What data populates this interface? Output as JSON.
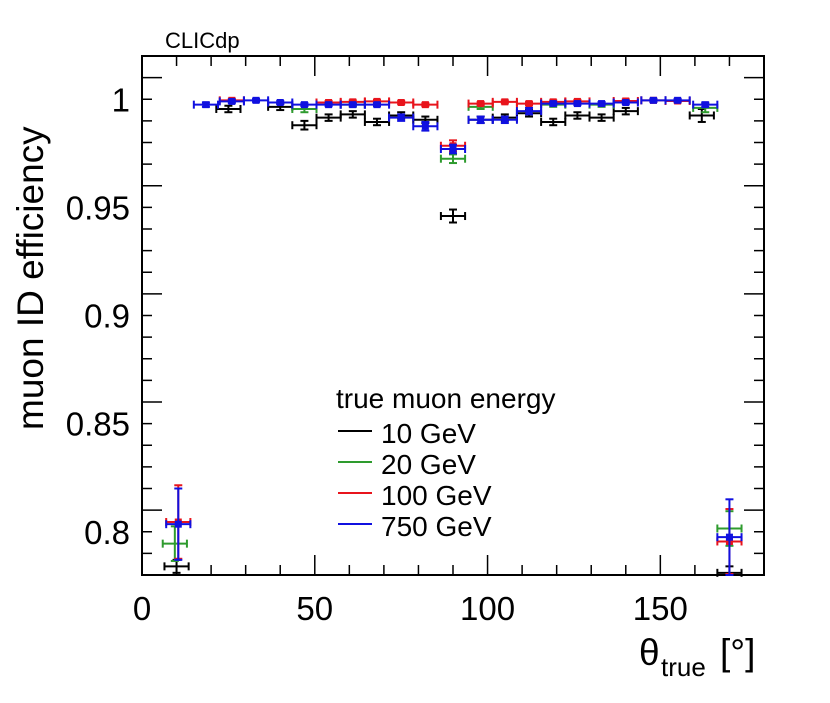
{
  "chart_data": {
    "type": "scatter",
    "label": "CLICdp",
    "xlabel_main": "θ",
    "xlabel_sub": "true",
    "xlabel_unit": "[°]",
    "ylabel": "muon ID efficiency",
    "xlim": [
      0,
      180
    ],
    "ylim": [
      0.78,
      1.02
    ],
    "x_ticks": [
      0,
      50,
      100,
      150
    ],
    "x_tick_labels": [
      "0",
      "50",
      "100",
      "150"
    ],
    "y_ticks": [
      0.8,
      0.85,
      0.9,
      0.95,
      1.0
    ],
    "y_tick_labels": [
      "0.8",
      "0.85",
      "0.9",
      "0.95",
      "1"
    ],
    "legend_title": "true muon energy",
    "legend_placement": "lower-center",
    "series": [
      {
        "name": "10 GeV",
        "color": "#000000",
        "marker": "none",
        "points": [
          {
            "x": 10,
            "xerr": 3.5,
            "y": 0.784,
            "yerr": 0.003
          },
          {
            "x": 25,
            "xerr": 3.5,
            "y": 0.9955,
            "yerr": 0.0015
          },
          {
            "x": 40,
            "xerr": 3.5,
            "y": 0.9965,
            "yerr": 0.0015
          },
          {
            "x": 47,
            "xerr": 3.5,
            "y": 0.988,
            "yerr": 0.002
          },
          {
            "x": 54,
            "xerr": 3.5,
            "y": 0.9915,
            "yerr": 0.0015
          },
          {
            "x": 61,
            "xerr": 3.5,
            "y": 0.993,
            "yerr": 0.0015
          },
          {
            "x": 68,
            "xerr": 3.5,
            "y": 0.9895,
            "yerr": 0.0015
          },
          {
            "x": 75,
            "xerr": 3.5,
            "y": 0.9925,
            "yerr": 0.0015
          },
          {
            "x": 82,
            "xerr": 3.5,
            "y": 0.9905,
            "yerr": 0.0015
          },
          {
            "x": 90,
            "xerr": 3.5,
            "y": 0.946,
            "yerr": 0.003
          },
          {
            "x": 98,
            "xerr": 3.5,
            "y": 0.9905,
            "yerr": 0.0015
          },
          {
            "x": 105,
            "xerr": 3.5,
            "y": 0.9915,
            "yerr": 0.0015
          },
          {
            "x": 112,
            "xerr": 3.5,
            "y": 0.9935,
            "yerr": 0.0015
          },
          {
            "x": 119,
            "xerr": 3.5,
            "y": 0.9895,
            "yerr": 0.0015
          },
          {
            "x": 126,
            "xerr": 3.5,
            "y": 0.9925,
            "yerr": 0.0015
          },
          {
            "x": 133,
            "xerr": 3.5,
            "y": 0.9915,
            "yerr": 0.0015
          },
          {
            "x": 140,
            "xerr": 3.5,
            "y": 0.9945,
            "yerr": 0.0015
          },
          {
            "x": 162,
            "xerr": 3.5,
            "y": 0.9925,
            "yerr": 0.003
          },
          {
            "x": 170,
            "xerr": 3.5,
            "y": 0.781,
            "yerr": 0.003
          }
        ]
      },
      {
        "name": "20 GeV",
        "color": "#2e9b2e",
        "marker": "none",
        "points": [
          {
            "x": 9.5,
            "xerr": 3.5,
            "y": 0.7945,
            "yerr": 0.008
          },
          {
            "x": 47,
            "xerr": 3.5,
            "y": 0.9955,
            "yerr": 0.0015
          },
          {
            "x": 61,
            "xerr": 3.5,
            "y": 0.9975,
            "yerr": 0.001
          },
          {
            "x": 90,
            "xerr": 3.5,
            "y": 0.9725,
            "yerr": 0.002
          },
          {
            "x": 98,
            "xerr": 3.5,
            "y": 0.9965,
            "yerr": 0.001
          },
          {
            "x": 119,
            "xerr": 3.5,
            "y": 0.9975,
            "yerr": 0.001
          },
          {
            "x": 133,
            "xerr": 3.5,
            "y": 0.9975,
            "yerr": 0.001
          },
          {
            "x": 163,
            "xerr": 3.5,
            "y": 0.996,
            "yerr": 0.002
          },
          {
            "x": 170,
            "xerr": 3.5,
            "y": 0.8015,
            "yerr": 0.008
          }
        ]
      },
      {
        "name": "100 GeV",
        "color": "#e8141c",
        "marker": "square",
        "points": [
          {
            "x": 10.5,
            "xerr": 3.5,
            "y": 0.8045,
            "yerr": 0.017
          },
          {
            "x": 26,
            "xerr": 3.5,
            "y": 0.9995,
            "yerr": 0.0007
          },
          {
            "x": 54,
            "xerr": 3.5,
            "y": 0.9985,
            "yerr": 0.0007
          },
          {
            "x": 61,
            "xerr": 3.5,
            "y": 0.9988,
            "yerr": 0.0007
          },
          {
            "x": 68,
            "xerr": 3.5,
            "y": 0.999,
            "yerr": 0.0007
          },
          {
            "x": 75,
            "xerr": 3.5,
            "y": 0.9985,
            "yerr": 0.0007
          },
          {
            "x": 82,
            "xerr": 3.5,
            "y": 0.9975,
            "yerr": 0.0007
          },
          {
            "x": 90,
            "xerr": 3.5,
            "y": 0.9785,
            "yerr": 0.0025
          },
          {
            "x": 98,
            "xerr": 3.5,
            "y": 0.998,
            "yerr": 0.0007
          },
          {
            "x": 105,
            "xerr": 3.5,
            "y": 0.9988,
            "yerr": 0.0007
          },
          {
            "x": 112,
            "xerr": 3.5,
            "y": 0.998,
            "yerr": 0.0007
          },
          {
            "x": 119,
            "xerr": 3.5,
            "y": 0.9988,
            "yerr": 0.0007
          },
          {
            "x": 126,
            "xerr": 3.5,
            "y": 0.999,
            "yerr": 0.0007
          },
          {
            "x": 140,
            "xerr": 3.5,
            "y": 0.9992,
            "yerr": 0.0007
          },
          {
            "x": 148,
            "xerr": 3.5,
            "y": 0.9995,
            "yerr": 0.0007
          },
          {
            "x": 155,
            "xerr": 3.5,
            "y": 0.9992,
            "yerr": 0.0007
          },
          {
            "x": 170,
            "xerr": 3.5,
            "y": 0.7955,
            "yerr": 0.015
          }
        ]
      },
      {
        "name": "750 GeV",
        "color": "#1010e0",
        "marker": "square",
        "points": [
          {
            "x": 10.5,
            "xerr": 3.5,
            "y": 0.8035,
            "yerr": 0.0165
          },
          {
            "x": 18.5,
            "xerr": 3.5,
            "y": 0.9975,
            "yerr": 0.001
          },
          {
            "x": 26,
            "xerr": 3.5,
            "y": 0.999,
            "yerr": 0.0007
          },
          {
            "x": 33,
            "xerr": 3.5,
            "y": 0.9995,
            "yerr": 0.0007
          },
          {
            "x": 40,
            "xerr": 3.5,
            "y": 0.9985,
            "yerr": 0.0007
          },
          {
            "x": 47,
            "xerr": 3.5,
            "y": 0.9975,
            "yerr": 0.0007
          },
          {
            "x": 54,
            "xerr": 3.5,
            "y": 0.9975,
            "yerr": 0.0007
          },
          {
            "x": 61,
            "xerr": 3.5,
            "y": 0.9975,
            "yerr": 0.0007
          },
          {
            "x": 68,
            "xerr": 3.5,
            "y": 0.9975,
            "yerr": 0.0007
          },
          {
            "x": 75,
            "xerr": 3.5,
            "y": 0.9915,
            "yerr": 0.0015
          },
          {
            "x": 82,
            "xerr": 3.5,
            "y": 0.9875,
            "yerr": 0.002
          },
          {
            "x": 90,
            "xerr": 3.5,
            "y": 0.977,
            "yerr": 0.002
          },
          {
            "x": 98,
            "xerr": 3.5,
            "y": 0.9905,
            "yerr": 0.0015
          },
          {
            "x": 105,
            "xerr": 3.5,
            "y": 0.9905,
            "yerr": 0.0015
          },
          {
            "x": 112,
            "xerr": 3.5,
            "y": 0.9945,
            "yerr": 0.0015
          },
          {
            "x": 119,
            "xerr": 3.5,
            "y": 0.998,
            "yerr": 0.0007
          },
          {
            "x": 126,
            "xerr": 3.5,
            "y": 0.998,
            "yerr": 0.0007
          },
          {
            "x": 133,
            "xerr": 3.5,
            "y": 0.998,
            "yerr": 0.0007
          },
          {
            "x": 140,
            "xerr": 3.5,
            "y": 0.9985,
            "yerr": 0.0007
          },
          {
            "x": 148,
            "xerr": 3.5,
            "y": 0.9995,
            "yerr": 0.0007
          },
          {
            "x": 155,
            "xerr": 3.5,
            "y": 0.9995,
            "yerr": 0.0007
          },
          {
            "x": 163,
            "xerr": 3.5,
            "y": 0.9975,
            "yerr": 0.001
          },
          {
            "x": 170,
            "xerr": 3.5,
            "y": 0.7975,
            "yerr": 0.0175
          }
        ]
      }
    ]
  }
}
